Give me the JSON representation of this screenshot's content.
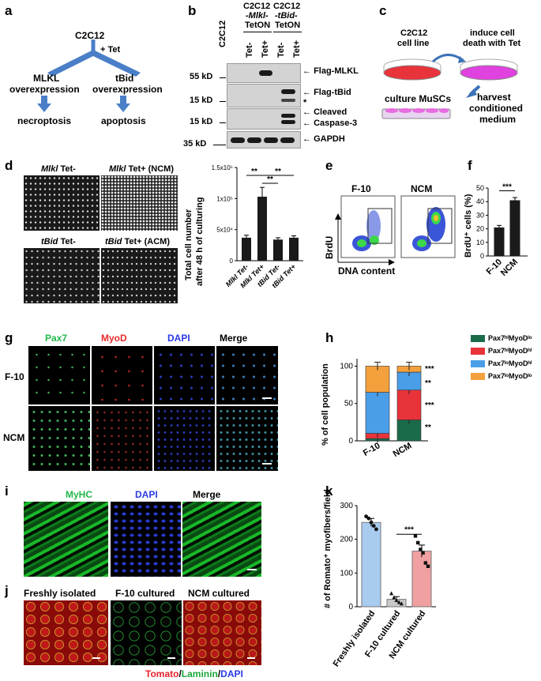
{
  "panels": {
    "a": {
      "label": "a",
      "cell": "C2C12",
      "treatment": "+ Tet",
      "left": {
        "line1": "MLKL",
        "line2": "overexpression",
        "outcome": "necroptosis"
      },
      "right": {
        "line1": "tBid",
        "line2": "overexpression",
        "outcome": "apoptosis"
      }
    },
    "b": {
      "label": "b",
      "lane_c2c12": "C2C12",
      "group1": {
        "line1": "C2C12",
        "line2": "-Mlkl-",
        "line3": "TetON"
      },
      "group2": {
        "line1": "C2C12",
        "line2": "-tBid-",
        "line3": "TetON"
      },
      "lanes": [
        "Tet-",
        "Tet+",
        "Tet-",
        "Tet+"
      ],
      "mw": [
        "55 kD",
        "15 kD",
        "15 kD",
        "35 kD"
      ],
      "bands": [
        "Flag-MLKL",
        "Flag-tBid",
        "*",
        "Cleaved",
        "Caspase-3",
        "GAPDH"
      ]
    },
    "c": {
      "label": "c",
      "dish1": {
        "line1": "C2C12",
        "line2": "cell line"
      },
      "dish2": {
        "line1": "induce cell",
        "line2": "death with Tet"
      },
      "culture": "culture MuSCs",
      "harvest": {
        "line1": "harvest",
        "line2": "conditioned",
        "line3": "medium"
      }
    },
    "d": {
      "label": "d",
      "img_labels": [
        {
          "gene": "Mlkl",
          "cond": " Tet-"
        },
        {
          "gene": "Mlkl",
          "cond": " Tet+ (NCM)"
        },
        {
          "gene": "tBid",
          "cond": " Tet-"
        },
        {
          "gene": "tBid",
          "cond": " Tet+ (ACM)"
        }
      ],
      "ylabel1": "Total cell number",
      "ylabel2": "after 48 h of culturing",
      "yticks": [
        "0",
        "5x10⁴",
        "1x10⁵",
        "1.5x10⁵"
      ],
      "sig": [
        "**",
        "**",
        "**"
      ]
    },
    "e": {
      "label": "e",
      "titles": [
        "F-10",
        "NCM"
      ],
      "ylabel": "BrdU",
      "xlabel": "DNA content"
    },
    "f": {
      "label": "f",
      "ylabel": "BrdU⁺ cells (%)",
      "yticks": [
        "0",
        "10",
        "20",
        "30",
        "40",
        "50"
      ],
      "sig": "***"
    },
    "g": {
      "label": "g",
      "channels": [
        "Pax7",
        "MyoD",
        "DAPI",
        "Merge"
      ],
      "rows": [
        "F-10",
        "NCM"
      ]
    },
    "h": {
      "label": "h",
      "ylabel": "% of cell population",
      "yticks": [
        "0",
        "50",
        "100"
      ],
      "legend": [
        "Pax7ʰⁱMyoDˡᵒ",
        "Pax7ʰⁱMyoDʰⁱ",
        "Pax7ˡᵒMyoDʰⁱ",
        "Pax7ˡᵒMyoDˡᵒ"
      ],
      "sig": [
        "***",
        "**",
        "***",
        "**"
      ]
    },
    "i": {
      "label": "i",
      "channels": [
        "MyHC",
        "DAPI",
        "Merge"
      ]
    },
    "j": {
      "label": "j",
      "titles": [
        "Freshly isolated",
        "F-10 cultured",
        "NCM cultured"
      ],
      "legend": {
        "red": "Tomato",
        "sep1": "/",
        "green": "Laminin",
        "sep2": "/",
        "blue": "DAPI"
      }
    },
    "k": {
      "label": "k",
      "ylabel": "# of Romato⁺ myofibers/field",
      "yticks": [
        "0",
        "100",
        "200",
        "300"
      ],
      "sig": "***"
    }
  },
  "chart_data": [
    {
      "type": "bar",
      "panel": "d",
      "categories": [
        "Mlkl Tet-",
        "Mlkl Tet+",
        "tBid Tet-",
        "tBid Tet+"
      ],
      "values": [
        37000,
        103000,
        34000,
        37000
      ],
      "errors": [
        4000,
        15000,
        3000,
        3000
      ],
      "ylim": [
        0,
        150000
      ],
      "ylabel": "Total cell number after 48 h of culturing"
    },
    {
      "type": "bar",
      "panel": "f",
      "categories": [
        "F-10",
        "NCM"
      ],
      "values": [
        21,
        41
      ],
      "errors": [
        1.5,
        2
      ],
      "ylim": [
        0,
        50
      ],
      "ylabel": "BrdU+ cells (%)"
    },
    {
      "type": "bar",
      "panel": "h",
      "stacked": true,
      "categories": [
        "F-10",
        "NCM"
      ],
      "series": [
        {
          "name": "Pax7hiMyoDlo",
          "color": "#1a6b4a",
          "values": [
            3,
            28
          ]
        },
        {
          "name": "Pax7hiMyoDhi",
          "color": "#e8333b",
          "values": [
            7,
            40
          ]
        },
        {
          "name": "Pax7loMyoDhi",
          "color": "#4a9ee8",
          "values": [
            55,
            24
          ]
        },
        {
          "name": "Pax7loMyoDlo",
          "color": "#f4a03c",
          "values": [
            35,
            8
          ]
        }
      ],
      "ylim": [
        0,
        110
      ],
      "ylabel": "% of cell population"
    },
    {
      "type": "bar",
      "panel": "k",
      "categories": [
        "Freshly isolated",
        "F-10 cultured",
        "NCM cultured"
      ],
      "values": [
        250,
        22,
        165
      ],
      "errors": [
        12,
        8,
        18
      ],
      "colors": [
        "#a9cbf0",
        "#c8c8c8",
        "#f0a0a0"
      ],
      "points": [
        [
          268,
          262,
          250,
          240,
          230
        ],
        [
          40,
          28,
          20,
          14,
          10
        ],
        [
          210,
          190,
          170,
          160,
          130,
          120
        ]
      ],
      "ylim": [
        0,
        300
      ],
      "ylabel": "# of Romato+ myofibers/field"
    }
  ]
}
